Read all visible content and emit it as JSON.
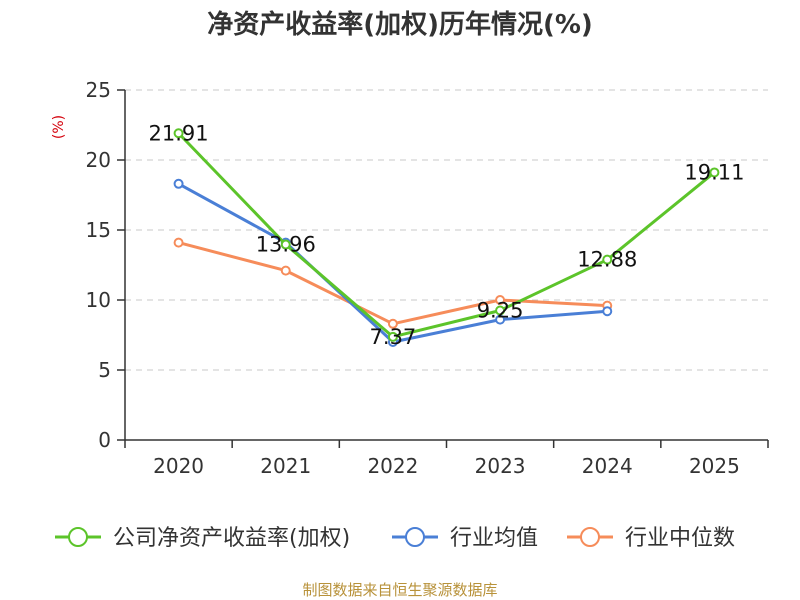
{
  "title": "净资产收益率(加权)历年情况(%)",
  "source": "制图数据来自恒生聚源数据库",
  "chart_data": {
    "type": "line",
    "title": "净资产收益率(加权)历年情况(%)",
    "ylabel": "(%)",
    "xlabel": "",
    "categories": [
      "2020",
      "2021",
      "2022",
      "2023",
      "2024",
      "2025"
    ],
    "ylim": [
      0,
      25
    ],
    "yticks": [
      0,
      5,
      10,
      15,
      20,
      25
    ],
    "grid": true,
    "legend_position": "bottom",
    "series": [
      {
        "name": "公司净资产收益率(加权)",
        "color": "#5cc42a",
        "values": [
          21.91,
          13.96,
          7.37,
          9.25,
          12.88,
          19.11
        ],
        "labels": [
          "21.91",
          "13.96",
          "7.37",
          "9.25",
          "12.88",
          "19.11"
        ]
      },
      {
        "name": "行业均值",
        "color": "#4a7fd6",
        "values": [
          18.3,
          14.1,
          7.0,
          8.6,
          9.2,
          null
        ]
      },
      {
        "name": "行业中位数",
        "color": "#f68c5a",
        "values": [
          14.1,
          12.1,
          8.3,
          10.0,
          9.6,
          null
        ]
      }
    ]
  }
}
